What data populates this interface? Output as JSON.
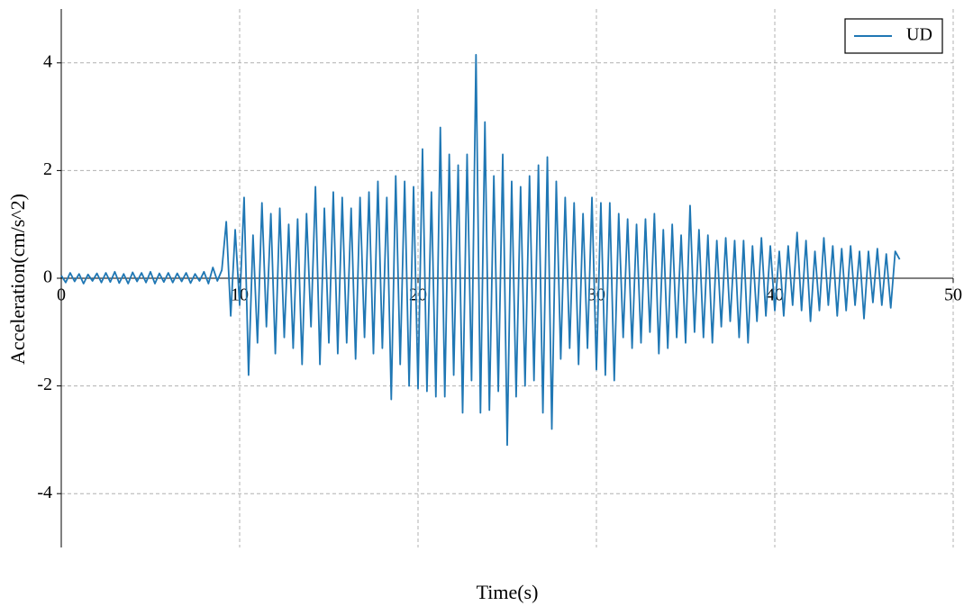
{
  "chart_data": {
    "type": "line",
    "xlabel": "Time(s)",
    "ylabel": "Acceleration(cm/s^2)",
    "xlim": [
      0,
      50
    ],
    "ylim": [
      -5,
      5
    ],
    "xticks": [
      0,
      10,
      20,
      30,
      40,
      50
    ],
    "yticks": [
      -4,
      -2,
      0,
      2,
      4
    ],
    "grid": true,
    "legend": "upper right",
    "x": [
      0,
      0.25,
      0.5,
      0.75,
      1,
      1.25,
      1.5,
      1.75,
      2,
      2.25,
      2.5,
      2.75,
      3,
      3.25,
      3.5,
      3.75,
      4,
      4.25,
      4.5,
      4.75,
      5,
      5.25,
      5.5,
      5.75,
      6,
      6.25,
      6.5,
      6.75,
      7,
      7.25,
      7.5,
      7.75,
      8,
      8.25,
      8.5,
      8.75,
      9,
      9.25,
      9.5,
      9.75,
      10,
      10.25,
      10.5,
      10.75,
      11,
      11.25,
      11.5,
      11.75,
      12,
      12.25,
      12.5,
      12.75,
      13,
      13.25,
      13.5,
      13.75,
      14,
      14.25,
      14.5,
      14.75,
      15,
      15.25,
      15.5,
      15.75,
      16,
      16.25,
      16.5,
      16.75,
      17,
      17.25,
      17.5,
      17.75,
      18,
      18.25,
      18.5,
      18.75,
      19,
      19.25,
      19.5,
      19.75,
      20,
      20.25,
      20.5,
      20.75,
      21,
      21.25,
      21.5,
      21.75,
      22,
      22.25,
      22.5,
      22.75,
      23,
      23.25,
      23.5,
      23.75,
      24,
      24.25,
      24.5,
      24.75,
      25,
      25.25,
      25.5,
      25.75,
      26,
      26.25,
      26.5,
      26.75,
      27,
      27.25,
      27.5,
      27.75,
      28,
      28.25,
      28.5,
      28.75,
      29,
      29.25,
      29.5,
      29.75,
      30,
      30.25,
      30.5,
      30.75,
      31,
      31.25,
      31.5,
      31.75,
      32,
      32.25,
      32.5,
      32.75,
      33,
      33.25,
      33.5,
      33.75,
      34,
      34.25,
      34.5,
      34.75,
      35,
      35.25,
      35.5,
      35.75,
      36,
      36.25,
      36.5,
      36.75,
      37,
      37.25,
      37.5,
      37.75,
      38,
      38.25,
      38.5,
      38.75,
      39,
      39.25,
      39.5,
      39.75,
      40,
      40.25,
      40.5,
      40.75,
      41,
      41.25,
      41.5,
      41.75,
      42,
      42.25,
      42.5,
      42.75,
      43,
      43.25,
      43.5,
      43.75,
      44,
      44.25,
      44.5,
      44.75,
      45,
      45.25,
      45.5,
      45.75,
      46,
      46.25,
      46.5,
      46.75,
      47
    ],
    "series": [
      {
        "name": "UD",
        "color": "#1f77b4",
        "values": [
          0.05,
          -0.08,
          0.1,
          -0.06,
          0.08,
          -0.1,
          0.07,
          -0.05,
          0.09,
          -0.08,
          0.1,
          -0.07,
          0.12,
          -0.09,
          0.08,
          -0.1,
          0.11,
          -0.06,
          0.1,
          -0.08,
          0.12,
          -0.1,
          0.09,
          -0.07,
          0.1,
          -0.08,
          0.09,
          -0.06,
          0.1,
          -0.09,
          0.08,
          -0.05,
          0.12,
          -0.1,
          0.2,
          -0.05,
          0.15,
          1.05,
          -0.7,
          0.9,
          -0.5,
          1.5,
          -1.8,
          0.8,
          -1.2,
          1.4,
          -0.9,
          1.2,
          -1.4,
          1.3,
          -1.1,
          1.0,
          -1.3,
          1.1,
          -1.6,
          1.2,
          -0.9,
          1.7,
          -1.6,
          1.3,
          -1.2,
          1.6,
          -1.4,
          1.5,
          -1.2,
          1.3,
          -1.5,
          1.5,
          -1.1,
          1.6,
          -1.4,
          1.8,
          -1.3,
          1.5,
          -2.25,
          1.9,
          -1.6,
          1.8,
          -2.0,
          1.7,
          -2.05,
          2.4,
          -2.1,
          1.6,
          -2.2,
          2.8,
          -2.2,
          2.3,
          -1.8,
          2.1,
          -2.5,
          2.3,
          -1.9,
          4.15,
          -2.5,
          2.9,
          -2.45,
          1.9,
          -2.1,
          2.3,
          -3.1,
          1.8,
          -2.2,
          1.7,
          -2.0,
          1.9,
          -1.9,
          2.1,
          -2.5,
          2.25,
          -2.8,
          1.8,
          -1.5,
          1.5,
          -1.3,
          1.4,
          -1.6,
          1.2,
          -1.3,
          1.5,
          -1.7,
          1.4,
          -1.8,
          1.4,
          -1.9,
          1.2,
          -1.1,
          1.1,
          -1.3,
          1.0,
          -1.2,
          1.1,
          -1.0,
          1.2,
          -1.4,
          0.9,
          -1.3,
          1.0,
          -1.1,
          0.8,
          -1.2,
          1.35,
          -1.0,
          0.9,
          -1.1,
          0.8,
          -1.2,
          0.7,
          -0.9,
          0.75,
          -0.8,
          0.7,
          -1.1,
          0.7,
          -1.2,
          0.6,
          -0.8,
          0.75,
          -0.7,
          0.6,
          -0.6,
          0.5,
          -0.7,
          0.6,
          -0.5,
          0.85,
          -0.6,
          0.7,
          -0.8,
          0.5,
          -0.6,
          0.75,
          -0.5,
          0.6,
          -0.7,
          0.55,
          -0.6,
          0.6,
          -0.5,
          0.5,
          -0.75,
          0.5,
          -0.45,
          0.55,
          -0.5,
          0.45,
          -0.55,
          0.5,
          0.35
        ]
      }
    ]
  }
}
